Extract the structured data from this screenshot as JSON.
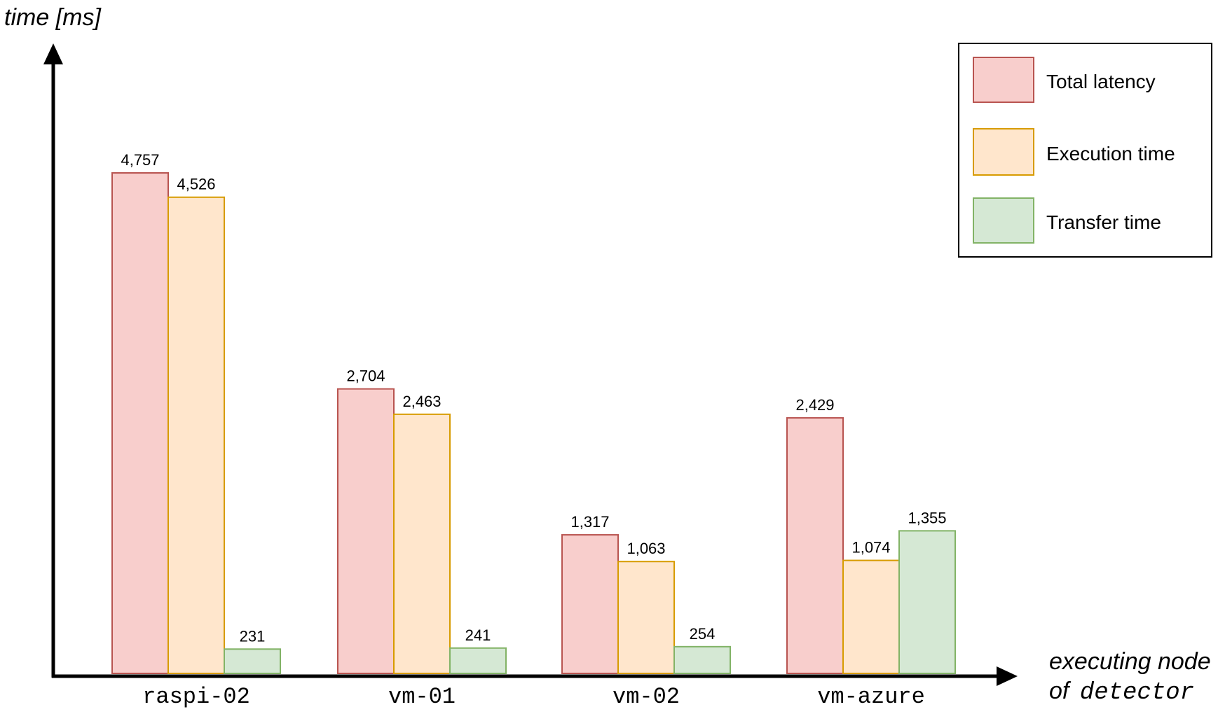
{
  "chart_data": {
    "type": "bar",
    "ylabel": "time [ms]",
    "xlabel_lines": [
      "executing node",
      "of"
    ],
    "xlabel_code": "detector",
    "categories": [
      "raspi-02",
      "vm-01",
      "vm-02",
      "vm-azure"
    ],
    "series": [
      {
        "name": "Total latency",
        "values": [
          4757,
          2704,
          1317,
          2429
        ],
        "labels": [
          "4,757",
          "2,704",
          "1,317",
          "2,429"
        ],
        "fill": "#f8cecc",
        "stroke": "#b85450"
      },
      {
        "name": "Execution time",
        "values": [
          4526,
          2463,
          1063,
          1074
        ],
        "labels": [
          "4,526",
          "2,463",
          "1,063",
          "1,074"
        ],
        "fill": "#ffe6cc",
        "stroke": "#d79b00"
      },
      {
        "name": "Transfer time",
        "values": [
          231,
          241,
          254,
          1355
        ],
        "labels": [
          "231",
          "241",
          "254",
          "1,355"
        ],
        "fill": "#d5e8d4",
        "stroke": "#82b366"
      }
    ],
    "legend_position": "top-right",
    "grid": false,
    "ylim": [
      0,
      5000
    ]
  }
}
